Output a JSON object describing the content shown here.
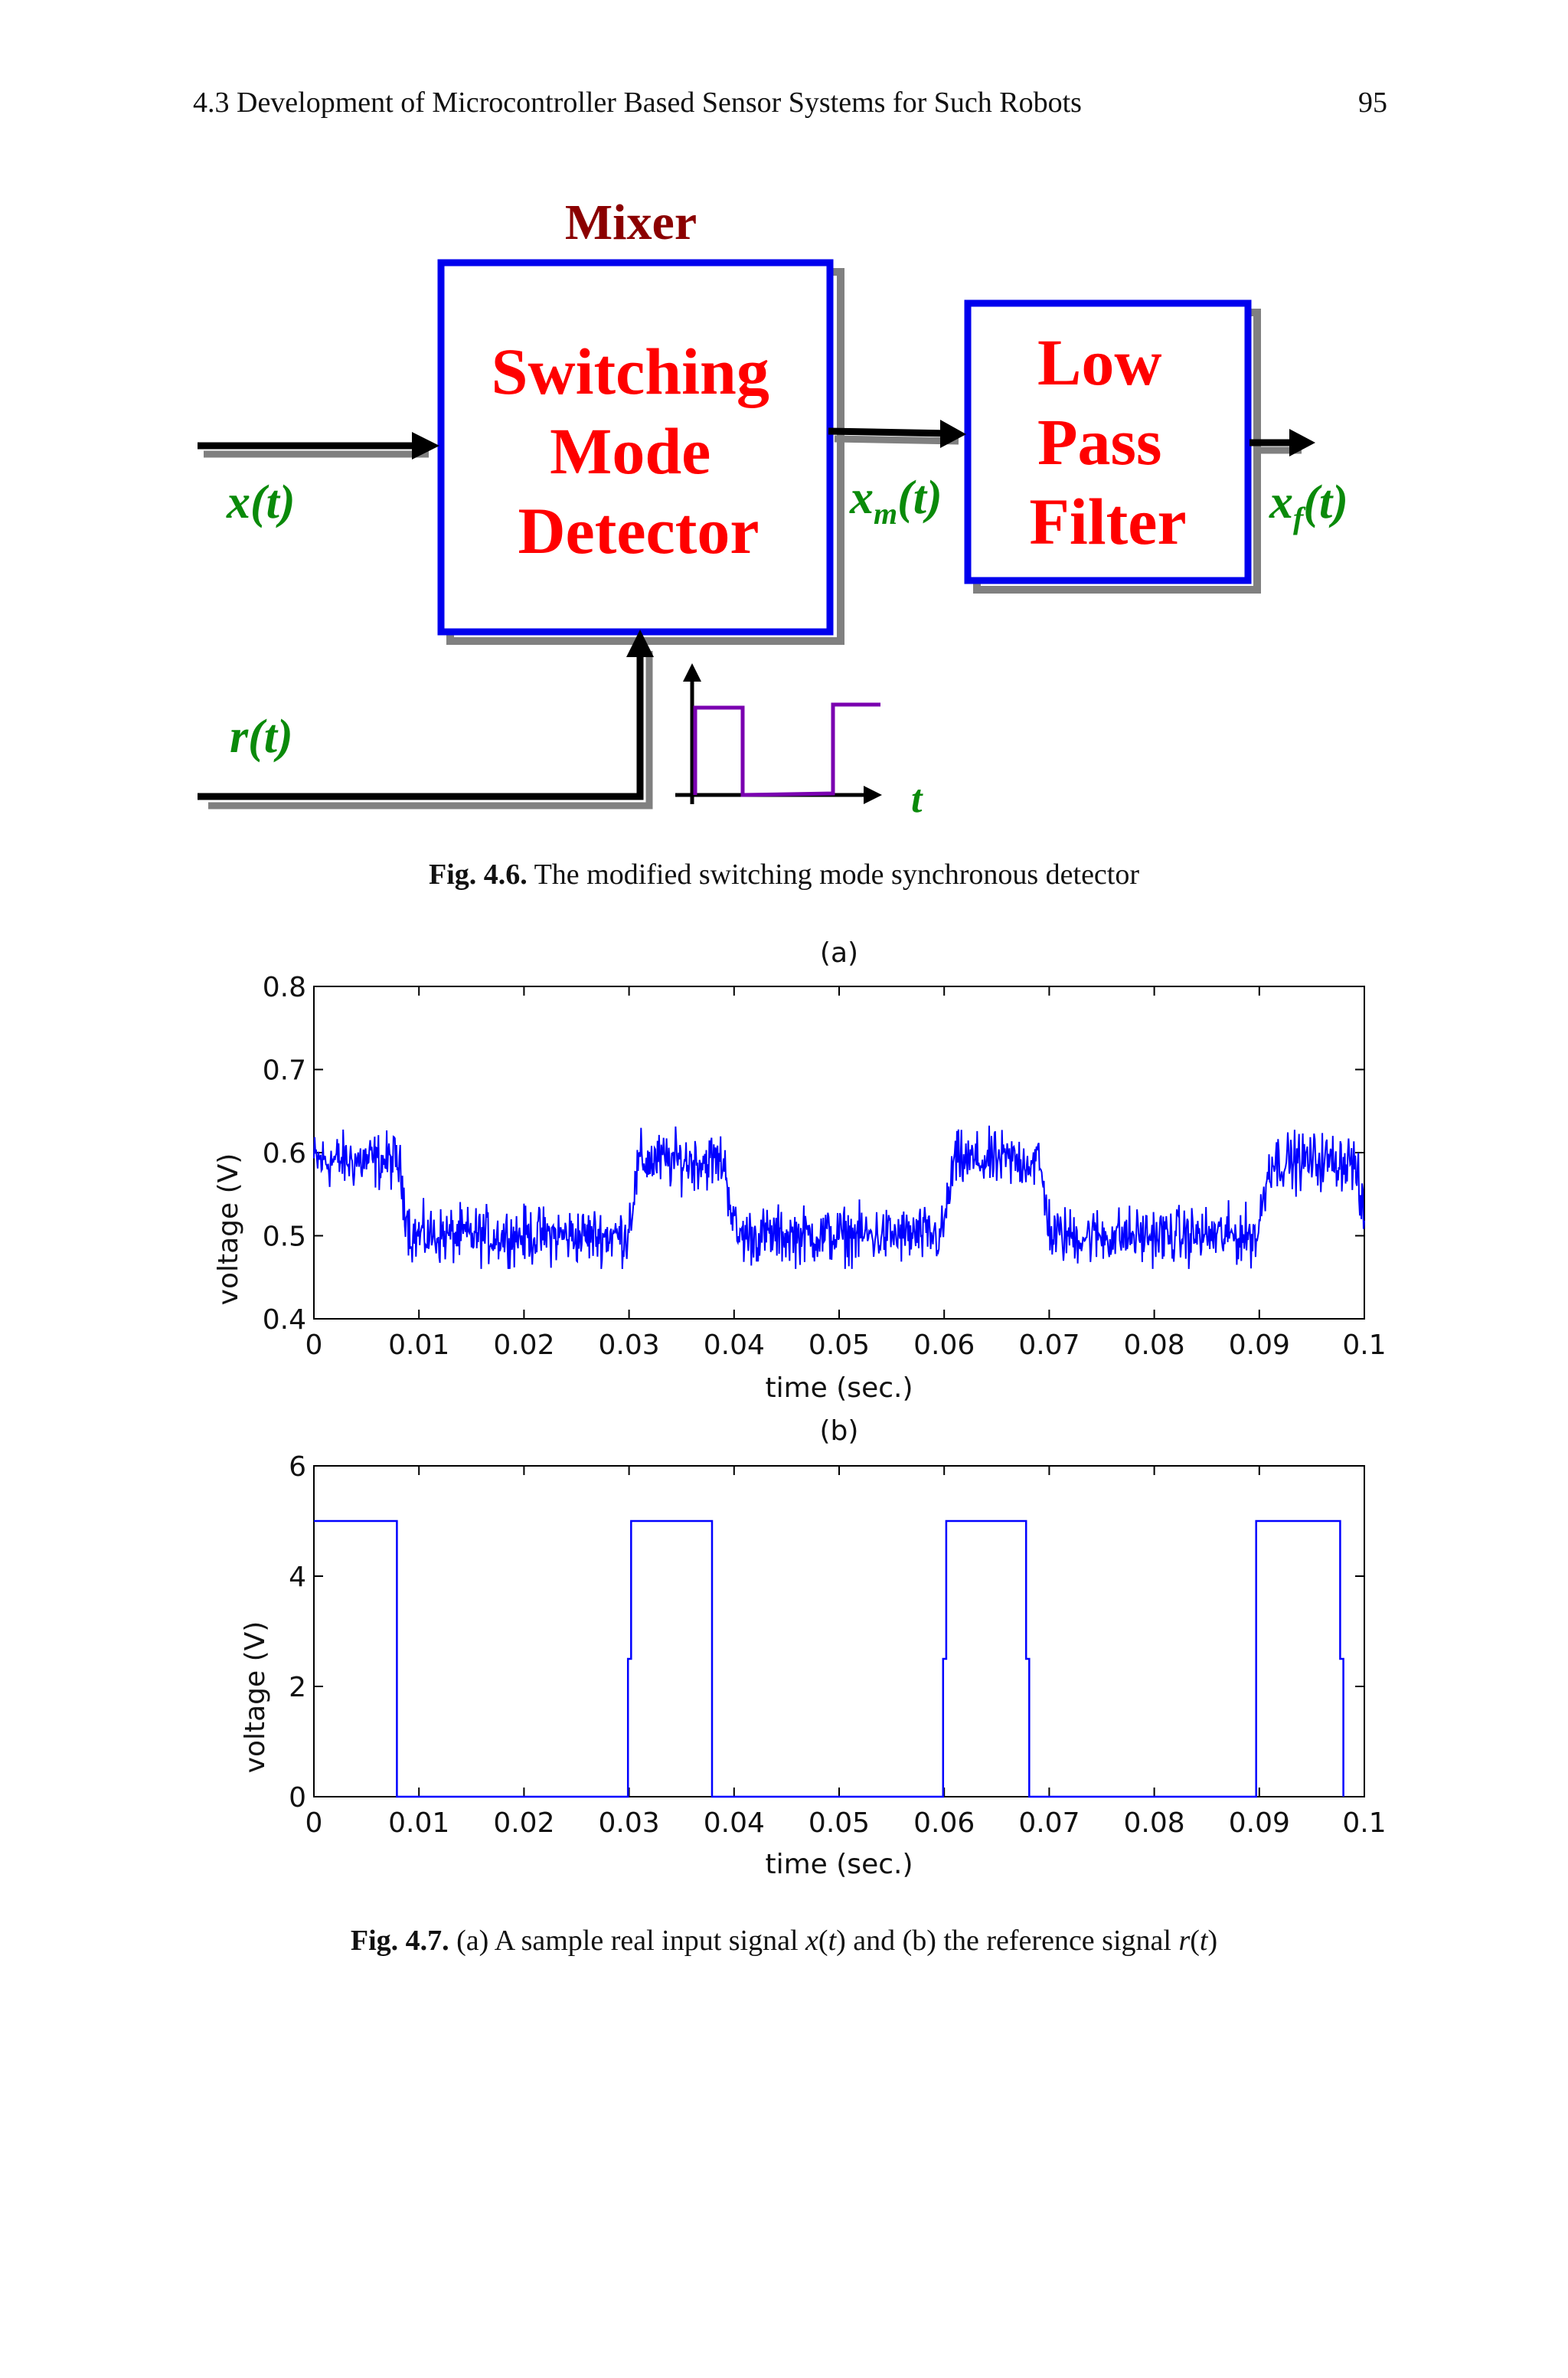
{
  "header": {
    "section": "4.3   Development of Microcontroller Based Sensor Systems for Such Robots",
    "page": "95"
  },
  "diagram": {
    "mixer_label": "Mixer",
    "detector_lines": [
      "Switching",
      "Mode",
      "Detector"
    ],
    "filter_lines": [
      "Low",
      "Pass",
      "Filter"
    ],
    "input_signal": {
      "base": "x",
      "arg": "(t)"
    },
    "mixed_signal": {
      "base": "x",
      "sub": "m",
      "arg": "(t)"
    },
    "filtered_signal": {
      "base": "x",
      "sub": "f",
      "arg": "(t)"
    },
    "reference_signal": {
      "base": "r",
      "arg": "(t)"
    },
    "time_axis": "t",
    "colors": {
      "block_border": "#0000ee",
      "shadow": "#808080",
      "block_text": "#ff0000",
      "signal_text": "#0a8a0a",
      "mixer": "#8b0000",
      "square_wave": "#7a00b0"
    }
  },
  "fig46": {
    "label": "Fig. 4.6.",
    "text": " The modified switching mode synchronous detector"
  },
  "fig47": {
    "label": "Fig. 4.7.",
    "text_a": " (a) A sample real input signal ",
    "x": "x",
    "t1": "t",
    "text_b": ") and (b) the reference signal ",
    "r": "r",
    "t2": "t"
  },
  "chart_data": [
    {
      "type": "line",
      "title": "(a)",
      "xlabel": "time (sec.)",
      "ylabel": "voltage (V)",
      "xlim": [
        0,
        0.1
      ],
      "ylim": [
        0.4,
        0.8
      ],
      "xticks": [
        "0",
        "0.01",
        "0.02",
        "0.03",
        "0.04",
        "0.05",
        "0.06",
        "0.07",
        "0.08",
        "0.09",
        "0.1"
      ],
      "yticks": [
        "0.4",
        "0.5",
        "0.6",
        "0.7",
        "0.8"
      ],
      "series_color": "#0000ff",
      "description_period": 0.03,
      "high_level": 0.59,
      "low_level": 0.5,
      "high_intervals": [
        [
          0,
          0.008
        ],
        [
          0.031,
          0.039
        ],
        [
          0.061,
          0.069
        ],
        [
          0.091,
          0.099
        ]
      ],
      "noise_amplitude": 0.045
    },
    {
      "type": "line",
      "title": "(b)",
      "xlabel": "time (sec.)",
      "ylabel": "voltage (V)",
      "xlim": [
        0,
        0.1
      ],
      "ylim": [
        0,
        6
      ],
      "xticks": [
        "0",
        "0.01",
        "0.02",
        "0.03",
        "0.04",
        "0.05",
        "0.06",
        "0.07",
        "0.08",
        "0.09",
        "0.1"
      ],
      "yticks": [
        "0",
        "2",
        "4",
        "6"
      ],
      "series_color": "#0000ff",
      "x": [
        0,
        0.0079,
        0.0079,
        0.0299,
        0.0299,
        0.0302,
        0.0302,
        0.0379,
        0.0379,
        0.0599,
        0.0599,
        0.0602,
        0.0602,
        0.0678,
        0.0678,
        0.0681,
        0.0681,
        0.0897,
        0.0897,
        0.0977,
        0.0977,
        0.098,
        0.098
      ],
      "y": [
        5,
        5,
        0,
        0,
        2.5,
        2.5,
        5,
        5,
        0,
        0,
        2.5,
        2.5,
        5,
        5,
        2.5,
        2.5,
        0,
        0,
        5,
        5,
        2.5,
        2.5,
        0
      ]
    }
  ]
}
